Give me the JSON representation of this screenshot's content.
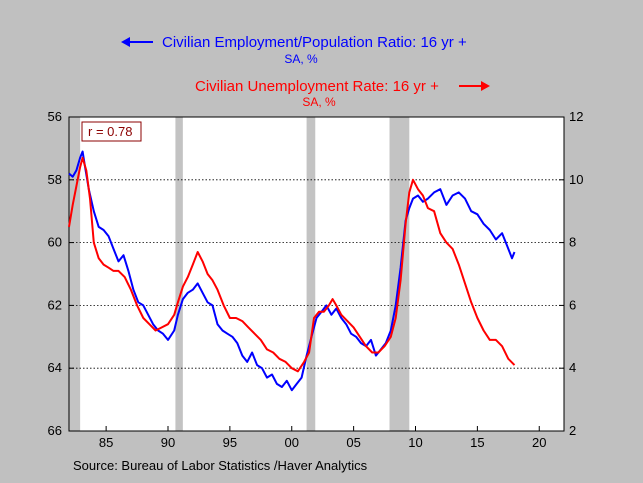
{
  "chart_data": {
    "type": "line",
    "legend": {
      "placement": "top-center",
      "left_series_label": "Civilian Employment/Population Ratio: 16 yr +",
      "left_series_unit": "SA, %",
      "right_series_label": "Civilian Unemployment Rate: 16 yr +",
      "right_series_unit": "SA, %"
    },
    "annotation": "r = 0.78",
    "source": "Source:  Bureau of Labor Statistics /Haver Analytics",
    "x_axis": {
      "range": [
        1982,
        2022
      ],
      "ticks": [
        1985,
        1990,
        1995,
        2000,
        2005,
        2010,
        2015,
        2020
      ],
      "tick_labels": [
        "85",
        "90",
        "95",
        "00",
        "05",
        "10",
        "15",
        "20"
      ]
    },
    "y_left": {
      "range": [
        56,
        66
      ],
      "inverted": true,
      "ticks": [
        56,
        58,
        60,
        62,
        64,
        66
      ],
      "tick_labels": [
        "56",
        "58",
        "60",
        "62",
        "64",
        "66"
      ]
    },
    "y_right": {
      "range": [
        2,
        12
      ],
      "ticks": [
        2,
        4,
        6,
        8,
        10,
        12
      ],
      "tick_labels": [
        "2",
        "4",
        "6",
        "8",
        "10",
        "12"
      ]
    },
    "gridlines_right_axis": [
      4,
      6,
      8,
      10
    ],
    "recessions": [
      [
        1982.0,
        1982.9
      ],
      [
        1990.6,
        1991.2
      ],
      [
        2001.2,
        2001.9
      ],
      [
        2007.9,
        2009.5
      ]
    ],
    "series": [
      {
        "name": "Civilian Employment/Population Ratio: 16 yr +",
        "axis": "left",
        "color": "#0000ff",
        "x": [
          1982.0,
          1982.3,
          1982.6,
          1982.9,
          1983.1,
          1983.3,
          1983.6,
          1984.0,
          1984.4,
          1984.8,
          1985.2,
          1985.6,
          1986.0,
          1986.4,
          1986.8,
          1987.2,
          1987.6,
          1988.0,
          1988.4,
          1988.8,
          1989.2,
          1989.6,
          1990.0,
          1990.5,
          1990.8,
          1991.2,
          1991.6,
          1992.0,
          1992.4,
          1992.8,
          1993.2,
          1993.6,
          1994.0,
          1994.4,
          1994.8,
          1995.2,
          1995.6,
          1996.0,
          1996.4,
          1996.8,
          1997.2,
          1997.6,
          1998.0,
          1998.4,
          1998.8,
          1999.2,
          1999.6,
          2000.0,
          2000.4,
          2000.8,
          2001.2,
          2001.6,
          2002.0,
          2002.4,
          2002.8,
          2003.2,
          2003.6,
          2004.0,
          2004.4,
          2004.8,
          2005.2,
          2005.6,
          2006.0,
          2006.4,
          2006.8,
          2007.2,
          2007.6,
          2008.0,
          2008.4,
          2008.8,
          2009.2,
          2009.5,
          2009.8,
          2010.2,
          2010.6,
          2011.0,
          2011.5,
          2012.0,
          2012.5,
          2013.0,
          2013.5,
          2014.0,
          2014.5,
          2015.0,
          2015.5,
          2016.0,
          2016.5,
          2017.0,
          2017.4,
          2017.8,
          2018.0
        ],
        "values": [
          57.8,
          57.9,
          57.7,
          57.3,
          57.1,
          57.6,
          58.3,
          59.0,
          59.5,
          59.6,
          59.8,
          60.2,
          60.6,
          60.4,
          60.9,
          61.5,
          61.9,
          62.0,
          62.3,
          62.6,
          62.8,
          62.9,
          63.1,
          62.8,
          62.3,
          61.8,
          61.6,
          61.5,
          61.3,
          61.6,
          61.9,
          62.0,
          62.6,
          62.8,
          62.9,
          63.0,
          63.2,
          63.6,
          63.8,
          63.5,
          63.9,
          64.0,
          64.3,
          64.2,
          64.5,
          64.6,
          64.4,
          64.7,
          64.5,
          64.3,
          63.6,
          63.0,
          62.4,
          62.2,
          62.0,
          62.3,
          62.1,
          62.4,
          62.6,
          62.9,
          63.0,
          63.2,
          63.3,
          63.1,
          63.6,
          63.4,
          63.2,
          62.8,
          62.0,
          60.8,
          59.3,
          58.9,
          58.6,
          58.5,
          58.7,
          58.6,
          58.4,
          58.3,
          58.8,
          58.5,
          58.4,
          58.6,
          59.0,
          59.1,
          59.4,
          59.6,
          59.9,
          59.7,
          60.1,
          60.5,
          60.3
        ]
      },
      {
        "name": "Civilian Unemployment Rate: 16 yr +",
        "axis": "right",
        "color": "#ff0000",
        "x": [
          1982.0,
          1982.3,
          1982.6,
          1982.9,
          1983.1,
          1983.4,
          1983.7,
          1984.0,
          1984.4,
          1984.8,
          1985.2,
          1985.6,
          1986.0,
          1986.5,
          1987.0,
          1987.5,
          1988.0,
          1988.5,
          1989.0,
          1989.5,
          1990.0,
          1990.5,
          1990.8,
          1991.2,
          1991.6,
          1992.0,
          1992.4,
          1992.8,
          1993.2,
          1993.6,
          1994.0,
          1994.5,
          1995.0,
          1995.5,
          1996.0,
          1996.5,
          1997.0,
          1997.5,
          1998.0,
          1998.5,
          1999.0,
          1999.5,
          2000.0,
          2000.5,
          2001.0,
          2001.4,
          2001.8,
          2002.2,
          2002.6,
          2003.0,
          2003.3,
          2003.6,
          2004.0,
          2004.5,
          2005.0,
          2005.5,
          2006.0,
          2006.5,
          2007.0,
          2007.5,
          2008.0,
          2008.4,
          2008.8,
          2009.2,
          2009.5,
          2009.8,
          2010.2,
          2010.6,
          2011.0,
          2011.5,
          2012.0,
          2012.5,
          2013.0,
          2013.5,
          2014.0,
          2014.5,
          2015.0,
          2015.5,
          2016.0,
          2016.5,
          2017.0,
          2017.5,
          2018.0
        ],
        "values": [
          8.5,
          9.2,
          9.8,
          10.4,
          10.7,
          10.3,
          9.4,
          8.0,
          7.5,
          7.3,
          7.2,
          7.1,
          7.1,
          6.9,
          6.5,
          6.0,
          5.6,
          5.4,
          5.2,
          5.3,
          5.4,
          5.7,
          6.1,
          6.6,
          6.9,
          7.3,
          7.7,
          7.4,
          7.0,
          6.8,
          6.5,
          6.0,
          5.6,
          5.6,
          5.5,
          5.3,
          5.1,
          4.9,
          4.6,
          4.5,
          4.3,
          4.2,
          4.0,
          3.9,
          4.2,
          4.5,
          5.6,
          5.8,
          5.8,
          6.0,
          6.2,
          6.0,
          5.7,
          5.5,
          5.3,
          5.0,
          4.7,
          4.5,
          4.5,
          4.7,
          5.0,
          5.6,
          6.8,
          8.6,
          9.6,
          10.0,
          9.7,
          9.5,
          9.1,
          9.0,
          8.3,
          8.0,
          7.8,
          7.3,
          6.7,
          6.1,
          5.6,
          5.2,
          4.9,
          4.9,
          4.7,
          4.3,
          4.1
        ]
      }
    ]
  }
}
